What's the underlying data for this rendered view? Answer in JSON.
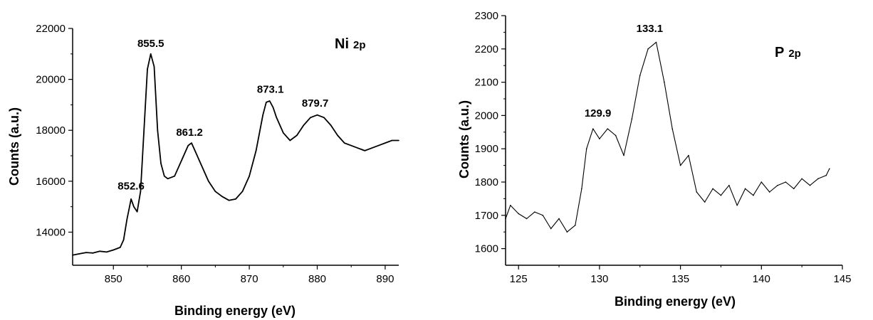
{
  "chart_data": [
    {
      "type": "line",
      "title": "Ni 2p",
      "title_main": "Ni",
      "title_sub": "2p",
      "xlabel": "Binding energy (eV)",
      "ylabel": "Counts (a.u.)",
      "xlim": [
        844,
        892
      ],
      "ylim": [
        12700,
        22000
      ],
      "xticks": [
        850,
        860,
        870,
        880,
        890
      ],
      "yticks": [
        14000,
        16000,
        18000,
        20000,
        22000
      ],
      "annotations": [
        {
          "text": "852.6",
          "x": 852.6,
          "y": 15400
        },
        {
          "text": "855.5",
          "x": 855.5,
          "y": 21000
        },
        {
          "text": "861.2",
          "x": 861.2,
          "y": 17500
        },
        {
          "text": "873.1",
          "x": 873.1,
          "y": 19200
        },
        {
          "text": "879.7",
          "x": 879.7,
          "y": 18650
        }
      ],
      "series": [
        {
          "x": [
            844,
            845,
            846,
            847,
            848,
            849,
            850,
            851,
            851.5,
            852,
            852.6,
            853,
            853.5,
            854,
            854.5,
            855,
            855.5,
            856,
            856.5,
            857,
            857.5,
            858,
            859,
            860,
            861,
            861.5,
            862,
            863,
            864,
            865,
            866,
            867,
            868,
            869,
            870,
            871,
            872,
            872.5,
            873,
            873.5,
            874,
            875,
            876,
            877,
            878,
            879,
            880,
            881,
            882,
            883,
            884,
            885,
            886,
            887,
            888,
            889,
            890,
            891,
            892
          ],
          "y": [
            13100,
            13150,
            13200,
            13180,
            13250,
            13220,
            13300,
            13400,
            13700,
            14500,
            15300,
            15000,
            14800,
            15600,
            18000,
            20400,
            21000,
            20500,
            18000,
            16700,
            16200,
            16100,
            16200,
            16800,
            17400,
            17500,
            17200,
            16600,
            16000,
            15600,
            15400,
            15250,
            15300,
            15600,
            16200,
            17200,
            18600,
            19100,
            19150,
            18900,
            18500,
            17900,
            17600,
            17800,
            18200,
            18500,
            18600,
            18500,
            18200,
            17800,
            17500,
            17400,
            17300,
            17200,
            17300,
            17400,
            17500,
            17600,
            17600
          ]
        }
      ]
    },
    {
      "type": "line",
      "title": "P 2p",
      "title_main": "P",
      "title_sub": "2p",
      "xlabel": "Binding energy (eV)",
      "ylabel": "Counts (a.u.)",
      "xlim": [
        124.2,
        145
      ],
      "ylim": [
        1550,
        2300
      ],
      "xticks": [
        125,
        130,
        135,
        140,
        145
      ],
      "yticks": [
        1600,
        1700,
        1800,
        1900,
        2000,
        2100,
        2200,
        2300
      ],
      "annotations": [
        {
          "text": "129.9",
          "x": 129.9,
          "y": 1975
        },
        {
          "text": "133.1",
          "x": 133.1,
          "y": 2230
        }
      ],
      "series": [
        {
          "x": [
            124.2,
            124.5,
            125,
            125.5,
            126,
            126.5,
            127,
            127.5,
            128,
            128.5,
            128.9,
            129.2,
            129.6,
            130,
            130.5,
            131,
            131.5,
            132,
            132.5,
            133,
            133.5,
            134,
            134.5,
            135,
            135.5,
            136,
            136.5,
            137,
            137.5,
            138,
            138.5,
            139,
            139.5,
            140,
            140.5,
            141,
            141.5,
            142,
            142.5,
            143,
            143.5,
            144,
            144.2
          ],
          "y": [
            1690,
            1730,
            1705,
            1690,
            1710,
            1700,
            1660,
            1690,
            1650,
            1670,
            1780,
            1900,
            1960,
            1930,
            1960,
            1940,
            1880,
            1990,
            2120,
            2200,
            2220,
            2100,
            1960,
            1850,
            1880,
            1770,
            1740,
            1780,
            1760,
            1790,
            1730,
            1780,
            1760,
            1800,
            1770,
            1790,
            1800,
            1780,
            1810,
            1790,
            1810,
            1820,
            1840
          ]
        }
      ]
    }
  ]
}
